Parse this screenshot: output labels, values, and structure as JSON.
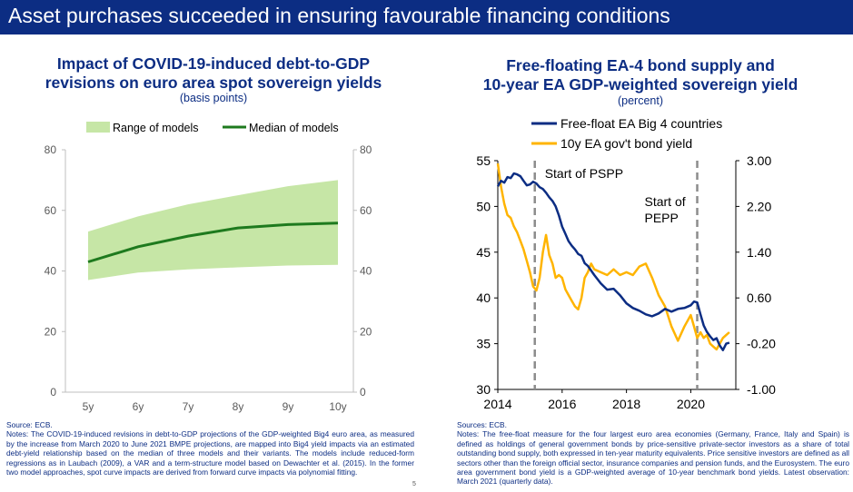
{
  "page": {
    "title": "Asset purchases succeeded in ensuring favourable financing conditions",
    "page_number": "5"
  },
  "left": {
    "title_line1": "Impact of COVID-19-induced debt-to-GDP",
    "title_line2": "revisions on euro area spot sovereign yields",
    "subtitle": "(basis points)",
    "source": "Source: ECB.",
    "notes": "Notes: The COVID-19-induced revisions in debt-to-GDP projections of the GDP-weighted Big4 euro area, as measured by the increase from March 2020 to June 2021 BMPE projections, are mapped into Big4 yield impacts via an estimated debt-yield relationship based on the median of three models and their variants. The models include reduced-form regressions as in Laubach (2009), a VAR and a term-structure model based on Dewachter et al. (2015). In the former two model approaches, spot curve impacts are derived from forward curve impacts via polynomial fitting."
  },
  "right": {
    "title_line1": "Free-floating EA-4 bond supply and",
    "title_line2": "10-year EA GDP-weighted sovereign yield",
    "subtitle": "(percent)",
    "source": "Sources: ECB.",
    "notes": "Notes: The free-float measure for the four largest euro area economies (Germany, France, Italy and Spain) is defined as holdings of general government bonds by price-sensitive private-sector investors as a share of total outstanding bond supply, both expressed in ten-year maturity equivalents. Price sensitive investors are defined as all sectors other than the foreign official sector, insurance companies and pension funds, and the Eurosystem. The euro area government bond yield is a GDP-weighted average of 10-year benchmark bond yields. Latest observation: March 2021 (quarterly data)."
  },
  "colors": {
    "header": "#0c2d83",
    "band": "#c6e6a6",
    "median": "#1e7a1e",
    "blue": "#0c2d83",
    "orange": "#ffb400",
    "dash": "#8c8c8c"
  },
  "chart_data": [
    {
      "type": "area",
      "legend": [
        "Range of models",
        "Median of models"
      ],
      "categories": [
        "5y",
        "6y",
        "7y",
        "8y",
        "9y",
        "10y"
      ],
      "series": [
        {
          "name": "Range of models (upper)",
          "values": [
            53,
            58,
            62,
            65,
            68,
            70
          ]
        },
        {
          "name": "Range of models (lower)",
          "values": [
            37,
            39.5,
            40.5,
            41.2,
            41.8,
            42
          ]
        },
        {
          "name": "Median of models",
          "values": [
            43,
            48,
            51.5,
            54.2,
            55.3,
            55.8
          ]
        }
      ],
      "ylim": [
        0,
        80
      ],
      "yticks": [
        "0",
        "20",
        "40",
        "60",
        "80"
      ],
      "grid": false
    },
    {
      "type": "line",
      "legend": [
        "Free-float EA Big 4 countries",
        "10y EA gov't bond yield"
      ],
      "xlim": [
        2014,
        2021.4
      ],
      "xticks": [
        "2014",
        "2016",
        "2018",
        "2020"
      ],
      "y_left": {
        "lim": [
          30,
          55
        ],
        "ticks": [
          "30",
          "35",
          "40",
          "45",
          "50",
          "55"
        ]
      },
      "y_right": {
        "lim": [
          -1.0,
          3.0
        ],
        "ticks": [
          "-1.00",
          "-0.20",
          "0.60",
          "1.40",
          "2.20",
          "3.00"
        ]
      },
      "annotations": [
        {
          "x": 2015.15,
          "label_line1": "Start of PSPP",
          "label_line2": ""
        },
        {
          "x": 2020.2,
          "label_line1": "Start of",
          "label_line2": "PEPP"
        }
      ],
      "series": [
        {
          "name": "Free-float EA Big 4 countries",
          "axis": "left",
          "x": [
            2014.0,
            2014.1,
            2014.2,
            2014.3,
            2014.4,
            2014.5,
            2014.6,
            2014.7,
            2014.8,
            2014.9,
            2015.0,
            2015.1,
            2015.2,
            2015.3,
            2015.4,
            2015.5,
            2015.6,
            2015.7,
            2015.8,
            2015.9,
            2016.0,
            2016.1,
            2016.2,
            2016.3,
            2016.4,
            2016.5,
            2016.6,
            2016.7,
            2016.8,
            2016.9,
            2017.0,
            2017.2,
            2017.4,
            2017.6,
            2017.8,
            2018.0,
            2018.2,
            2018.4,
            2018.6,
            2018.8,
            2019.0,
            2019.2,
            2019.4,
            2019.6,
            2019.8,
            2020.0,
            2020.1,
            2020.2,
            2020.3,
            2020.4,
            2020.5,
            2020.6,
            2020.7,
            2020.8,
            2020.9,
            2021.0,
            2021.1,
            2021.2
          ],
          "values": [
            52.2,
            52.8,
            52.6,
            53.2,
            53.1,
            53.6,
            53.5,
            53.3,
            52.8,
            52.3,
            52.4,
            52.7,
            52.5,
            52.1,
            51.9,
            51.5,
            51.0,
            50.6,
            50.0,
            49.0,
            47.8,
            47.0,
            46.2,
            45.7,
            45.3,
            44.8,
            44.6,
            43.8,
            43.5,
            43.0,
            42.5,
            41.6,
            40.9,
            41.0,
            40.3,
            39.4,
            38.9,
            38.6,
            38.2,
            38.0,
            38.3,
            38.8,
            38.5,
            38.8,
            38.9,
            39.2,
            39.6,
            39.5,
            38.2,
            37.0,
            36.3,
            35.8,
            35.4,
            35.6,
            34.8,
            34.3,
            35.0,
            35.1
          ]
        },
        {
          "name": "10y EA gov't bond yield",
          "axis": "right",
          "x": [
            2014.0,
            2014.1,
            2014.2,
            2014.3,
            2014.4,
            2014.5,
            2014.6,
            2014.7,
            2014.8,
            2014.9,
            2015.0,
            2015.1,
            2015.2,
            2015.3,
            2015.4,
            2015.5,
            2015.6,
            2015.7,
            2015.8,
            2015.9,
            2016.0,
            2016.1,
            2016.2,
            2016.3,
            2016.4,
            2016.5,
            2016.6,
            2016.7,
            2016.8,
            2016.9,
            2017.0,
            2017.2,
            2017.4,
            2017.6,
            2017.8,
            2018.0,
            2018.2,
            2018.4,
            2018.6,
            2018.8,
            2019.0,
            2019.2,
            2019.4,
            2019.6,
            2019.8,
            2020.0,
            2020.1,
            2020.2,
            2020.3,
            2020.4,
            2020.5,
            2020.6,
            2020.7,
            2020.8,
            2020.9,
            2021.0,
            2021.1,
            2021.2
          ],
          "values": [
            2.95,
            2.55,
            2.25,
            2.05,
            2.0,
            1.85,
            1.75,
            1.6,
            1.45,
            1.25,
            1.05,
            0.8,
            0.73,
            0.95,
            1.4,
            1.7,
            1.35,
            1.2,
            0.95,
            1.0,
            0.95,
            0.75,
            0.65,
            0.55,
            0.45,
            0.4,
            0.6,
            0.95,
            1.05,
            1.2,
            1.1,
            1.05,
            1.0,
            1.1,
            1.0,
            1.05,
            1.0,
            1.15,
            1.2,
            0.95,
            0.65,
            0.45,
            0.1,
            -0.15,
            0.1,
            0.3,
            0.1,
            -0.1,
            0.0,
            -0.1,
            -0.05,
            -0.2,
            -0.25,
            -0.3,
            -0.2,
            -0.1,
            -0.05,
            0.0
          ]
        }
      ]
    }
  ]
}
